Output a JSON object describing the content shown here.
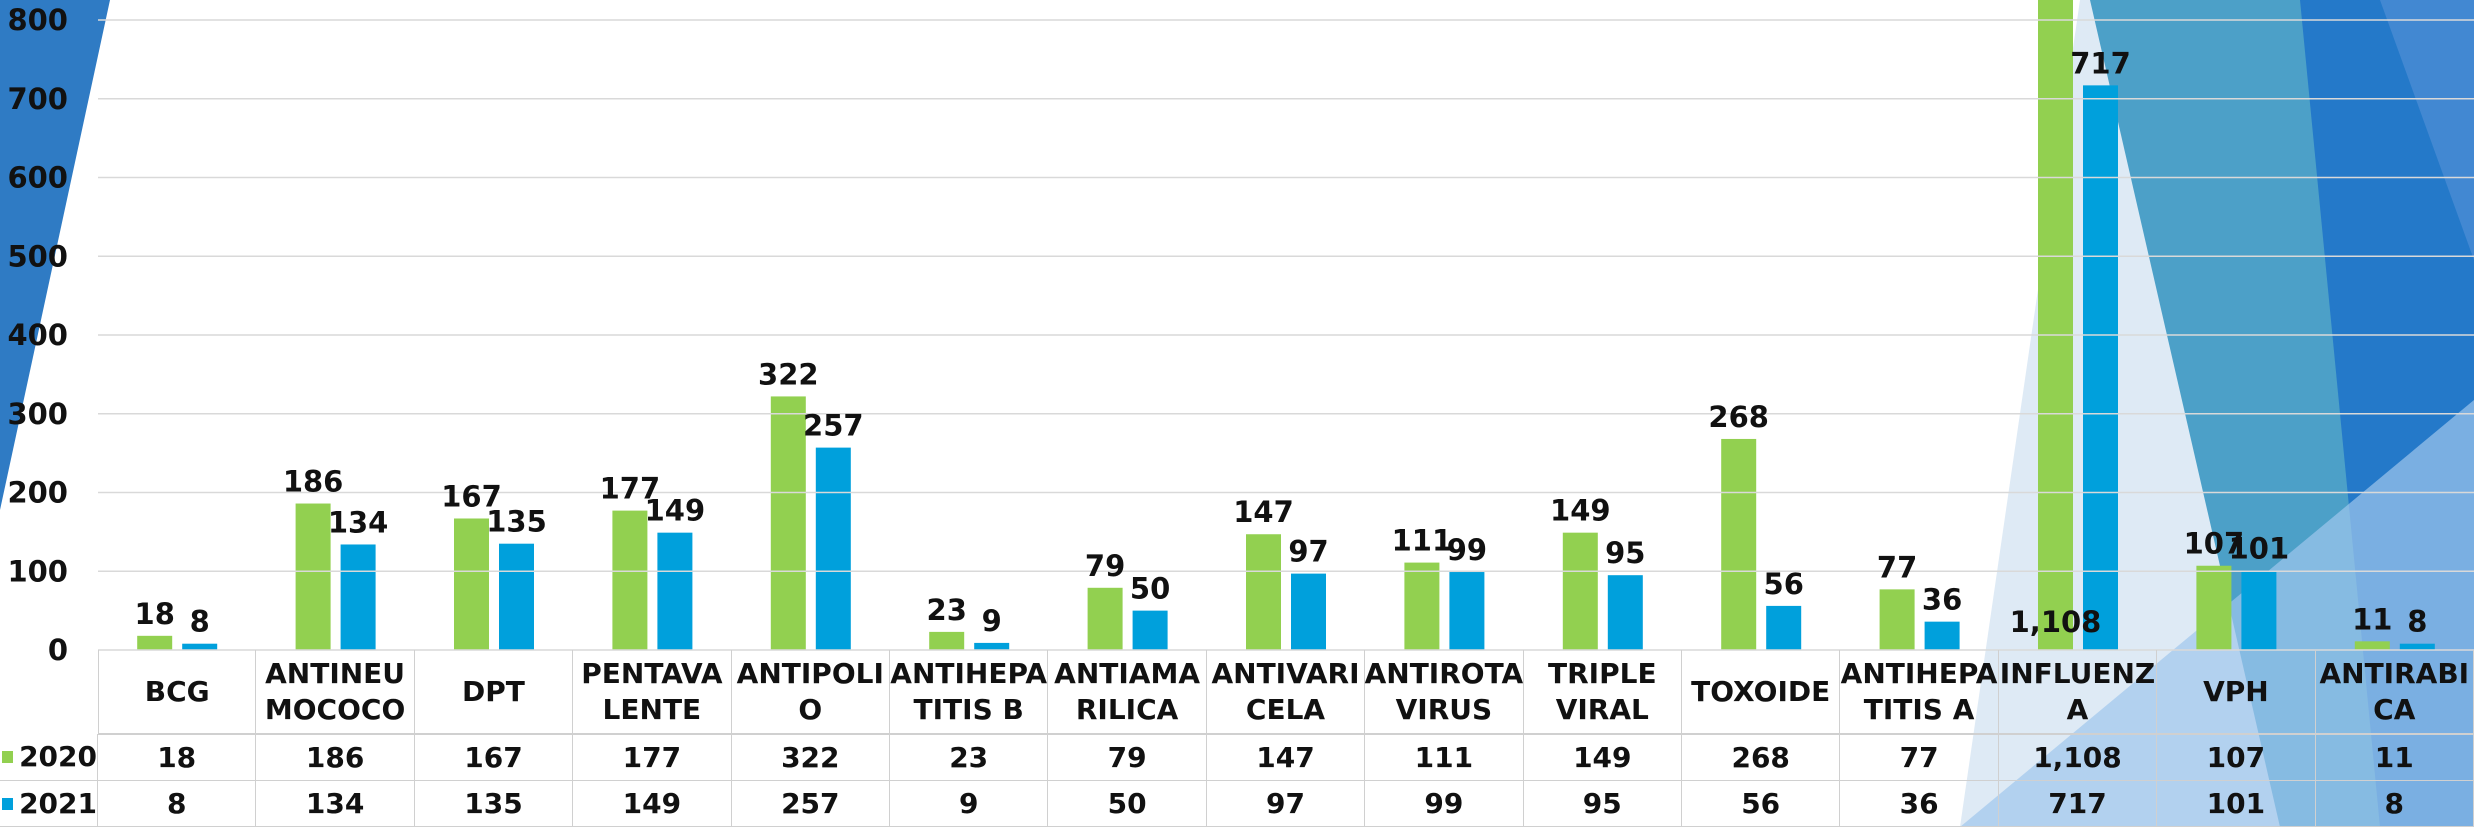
{
  "chart_data": {
    "type": "bar",
    "categories": [
      "BCG",
      "ANTINEU\nMOCOCO",
      "DPT",
      "PENTAVA\nLENTE",
      "ANTIPOLI\nO",
      "ANTIHEPA\nTITIS B",
      "ANTIAMA\nRILICA",
      "ANTIVARI\nCELA",
      "ANTIROTA\nVIRUS",
      "TRIPLE\nVIRAL",
      "TOXOIDE",
      "ANTIHEPA\nTITIS A",
      "INFLUENZ\nA",
      "VPH",
      "ANTIRABI\nCA"
    ],
    "series": [
      {
        "name": "2020",
        "color": "#92d050",
        "values": [
          18,
          186,
          167,
          177,
          322,
          23,
          79,
          147,
          111,
          149,
          268,
          77,
          1108,
          107,
          11
        ],
        "value_labels": [
          "18",
          "186",
          "167",
          "177",
          "322",
          "23",
          "79",
          "147",
          "111",
          "149",
          "268",
          "77",
          "1,108",
          "107",
          "11"
        ]
      },
      {
        "name": "2021",
        "color": "#00a0dc",
        "values": [
          8,
          134,
          135,
          149,
          257,
          9,
          50,
          97,
          99,
          95,
          56,
          36,
          717,
          101,
          8
        ]
      }
    ],
    "ylim": [
      0,
      800
    ],
    "yticks": [
      0,
      100,
      200,
      300,
      400,
      500,
      600,
      700,
      800
    ],
    "grid": true
  }
}
